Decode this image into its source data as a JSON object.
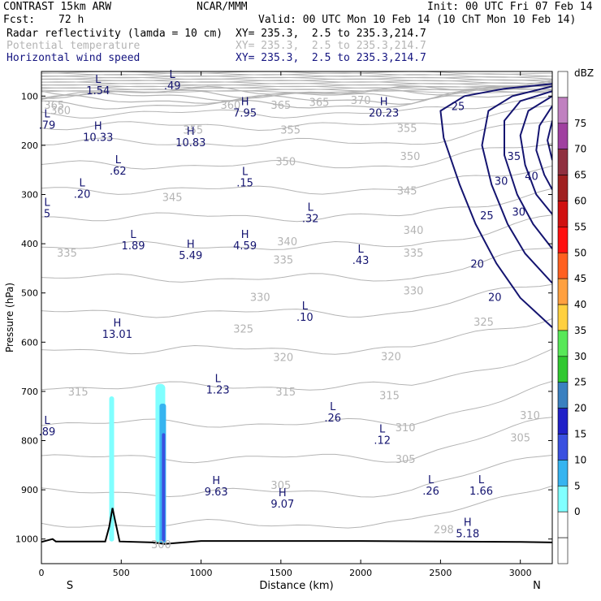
{
  "header": {
    "model": "CONTRAST 15km ARW",
    "org": "NCAR/MMM",
    "init": "Init: 00 UTC Fri 07 Feb 14",
    "fcst_label": "Fcst:",
    "fcst_value": "72 h",
    "valid": "Valid: 00 UTC Mon 10 Feb 14 (10 ChT Mon 10 Feb 14)",
    "fields": [
      {
        "name": "Radar reflectivity (lamda = 10 cm)",
        "xy": "XY= 235.3,  2.5 to 235.3,214.7",
        "color": "#000000"
      },
      {
        "name": "Potential temperature",
        "xy": "XY= 235.3,  2.5 to 235.3,214.7",
        "color": "#b4b4b4"
      },
      {
        "name": "Horizontal wind speed",
        "xy": "XY= 235.3,  2.5 to 235.3,214.7",
        "color": "#141480"
      }
    ]
  },
  "chart_data": {
    "type": "cross-section",
    "xlabel": "Distance (km)",
    "ylabel": "Pressure (hPa)",
    "xlim": [
      0,
      3200
    ],
    "ylim": [
      1050,
      50
    ],
    "x_ticks": [
      0,
      500,
      1000,
      1500,
      2000,
      2500,
      3000
    ],
    "y_ticks": [
      100,
      200,
      300,
      400,
      500,
      600,
      700,
      800,
      900,
      1000
    ],
    "x_end_labels": {
      "left": "S",
      "right": "N"
    },
    "colorbar": {
      "unit": "dBZ",
      "levels": [
        "0",
        "5",
        "10",
        "15",
        "20",
        "25",
        "30",
        "35",
        "40",
        "45",
        "50",
        "55",
        "60",
        "65",
        "70",
        "75"
      ],
      "colors": [
        "#ffffff",
        "#ffffff",
        "#80ffff",
        "#36b4f0",
        "#3a50e0",
        "#2020c8",
        "#3a80c0",
        "#30c830",
        "#58e858",
        "#ffd040",
        "#ffa040",
        "#ff6020",
        "#ff1010",
        "#d01010",
        "#a02020",
        "#903040",
        "#a040a0",
        "#c080c0",
        "#ffffff"
      ]
    },
    "theta_labels": [
      {
        "v": "365",
        "x": 80,
        "p": 118
      },
      {
        "v": "360",
        "x": 120,
        "p": 128
      },
      {
        "v": "360",
        "x": 1185,
        "p": 118
      },
      {
        "v": "365",
        "x": 1500,
        "p": 118
      },
      {
        "v": "365",
        "x": 1740,
        "p": 112
      },
      {
        "v": "370",
        "x": 2000,
        "p": 108
      },
      {
        "v": "355",
        "x": 950,
        "p": 168
      },
      {
        "v": "355",
        "x": 1560,
        "p": 168
      },
      {
        "v": "355",
        "x": 2290,
        "p": 165
      },
      {
        "v": "350",
        "x": 1530,
        "p": 232
      },
      {
        "v": "350",
        "x": 2310,
        "p": 222
      },
      {
        "v": "345",
        "x": 820,
        "p": 305
      },
      {
        "v": "345",
        "x": 2290,
        "p": 292
      },
      {
        "v": "340",
        "x": 1540,
        "p": 395
      },
      {
        "v": "340",
        "x": 2330,
        "p": 372
      },
      {
        "v": "335",
        "x": 160,
        "p": 418
      },
      {
        "v": "335",
        "x": 1515,
        "p": 432
      },
      {
        "v": "335",
        "x": 2330,
        "p": 418
      },
      {
        "v": "330",
        "x": 1370,
        "p": 508
      },
      {
        "v": "330",
        "x": 2330,
        "p": 495
      },
      {
        "v": "325",
        "x": 1265,
        "p": 572
      },
      {
        "v": "325",
        "x": 2770,
        "p": 558
      },
      {
        "v": "320",
        "x": 1515,
        "p": 630
      },
      {
        "v": "320",
        "x": 2190,
        "p": 628
      },
      {
        "v": "315",
        "x": 230,
        "p": 700
      },
      {
        "v": "315",
        "x": 1530,
        "p": 700
      },
      {
        "v": "315",
        "x": 2180,
        "p": 708
      },
      {
        "v": "310",
        "x": 2280,
        "p": 773
      },
      {
        "v": "310",
        "x": 3060,
        "p": 748
      },
      {
        "v": "305",
        "x": 2280,
        "p": 837
      },
      {
        "v": "305",
        "x": 3000,
        "p": 793
      },
      {
        "v": "305",
        "x": 1500,
        "p": 890
      },
      {
        "v": "300",
        "x": 750,
        "p": 1010
      },
      {
        "v": "298",
        "x": 2520,
        "p": 980
      }
    ],
    "wind_labels": [
      {
        "v": "25",
        "x": 2610,
        "p": 120
      },
      {
        "v": "35",
        "x": 2960,
        "p": 222
      },
      {
        "v": "30",
        "x": 2880,
        "p": 272
      },
      {
        "v": "40",
        "x": 3070,
        "p": 262
      },
      {
        "v": "30",
        "x": 2990,
        "p": 335
      },
      {
        "v": "25",
        "x": 2790,
        "p": 342
      },
      {
        "v": "20",
        "x": 2730,
        "p": 440
      },
      {
        "v": "20",
        "x": 2840,
        "p": 508
      }
    ],
    "extrema": [
      {
        "t": "L",
        "v": "1.54",
        "x": 355,
        "p": 75
      },
      {
        "t": "L",
        "v": ".49",
        "x": 820,
        "p": 65
      },
      {
        "t": "L",
        "v": ".79",
        "x": 0,
        "p": 145
      },
      {
        "t": "H",
        "v": "10.33",
        "x": 355,
        "p": 170
      },
      {
        "t": "H",
        "v": "7.95",
        "x": 1275,
        "p": 120
      },
      {
        "t": "H",
        "v": "20.23",
        "x": 2145,
        "p": 120
      },
      {
        "t": "H",
        "v": "10.83",
        "x": 935,
        "p": 180
      },
      {
        "t": "L",
        "v": ".62",
        "x": 480,
        "p": 238
      },
      {
        "t": "L",
        "v": ".15",
        "x": 1275,
        "p": 262
      },
      {
        "t": "L",
        "v": ".20",
        "x": 255,
        "p": 285
      },
      {
        "t": "L",
        "v": "5",
        "x": 0,
        "p": 325
      },
      {
        "t": "L",
        "v": ".32",
        "x": 1685,
        "p": 335
      },
      {
        "t": "L",
        "v": "1.89",
        "x": 575,
        "p": 390
      },
      {
        "t": "H",
        "v": "4.59",
        "x": 1275,
        "p": 390
      },
      {
        "t": "H",
        "v": "5.49",
        "x": 935,
        "p": 410
      },
      {
        "t": "L",
        "v": ".43",
        "x": 2000,
        "p": 420
      },
      {
        "t": "L",
        "v": ".10",
        "x": 1650,
        "p": 535
      },
      {
        "t": "H",
        "v": "13.01",
        "x": 475,
        "p": 570
      },
      {
        "t": "L",
        "v": "1.23",
        "x": 1105,
        "p": 683
      },
      {
        "t": "L",
        "v": ".26",
        "x": 1825,
        "p": 740
      },
      {
        "t": "L",
        "v": ".89",
        "x": 0,
        "p": 768
      },
      {
        "t": "L",
        "v": ".12",
        "x": 2135,
        "p": 785
      },
      {
        "t": "H",
        "v": "9.63",
        "x": 1095,
        "p": 890
      },
      {
        "t": "H",
        "v": "9.07",
        "x": 1510,
        "p": 915
      },
      {
        "t": "L",
        "v": ".26",
        "x": 2440,
        "p": 888
      },
      {
        "t": "L",
        "v": "1.66",
        "x": 2755,
        "p": 888
      },
      {
        "t": "H",
        "v": "5.18",
        "x": 2670,
        "p": 975
      }
    ],
    "terrain": [
      [
        0,
        1006
      ],
      [
        70,
        1000
      ],
      [
        90,
        1005
      ],
      [
        400,
        1005
      ],
      [
        425,
        975
      ],
      [
        445,
        937
      ],
      [
        460,
        960
      ],
      [
        490,
        1005
      ],
      [
        700,
        1007
      ],
      [
        770,
        1010
      ],
      [
        1000,
        1004
      ],
      [
        2000,
        1004
      ],
      [
        3000,
        1006
      ],
      [
        3200,
        1007
      ]
    ]
  }
}
